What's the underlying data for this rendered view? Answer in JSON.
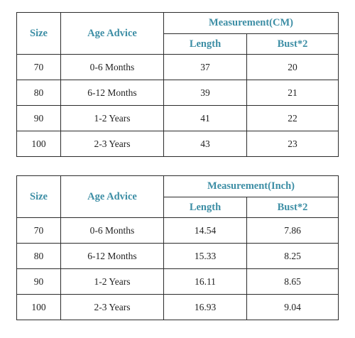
{
  "tables": [
    {
      "headers": {
        "size": "Size",
        "age": "Age Advice",
        "measurement": "Measurement(CM)",
        "length": "Length",
        "bust": "Bust*2"
      },
      "rows": [
        {
          "size": "70",
          "age": "0-6 Months",
          "length": "37",
          "bust": "20"
        },
        {
          "size": "80",
          "age": "6-12 Months",
          "length": "39",
          "bust": "21"
        },
        {
          "size": "90",
          "age": "1-2 Years",
          "length": "41",
          "bust": "22"
        },
        {
          "size": "100",
          "age": "2-3 Years",
          "length": "43",
          "bust": "23"
        }
      ]
    },
    {
      "headers": {
        "size": "Size",
        "age": "Age Advice",
        "measurement": "Measurement(Inch)",
        "length": "Length",
        "bust": "Bust*2"
      },
      "rows": [
        {
          "size": "70",
          "age": "0-6 Months",
          "length": "14.54",
          "bust": "7.86"
        },
        {
          "size": "80",
          "age": "6-12 Months",
          "length": "15.33",
          "bust": "8.25"
        },
        {
          "size": "90",
          "age": "1-2 Years",
          "length": "16.11",
          "bust": "8.65"
        },
        {
          "size": "100",
          "age": "2-3 Years",
          "length": "16.93",
          "bust": "9.04"
        }
      ]
    }
  ]
}
